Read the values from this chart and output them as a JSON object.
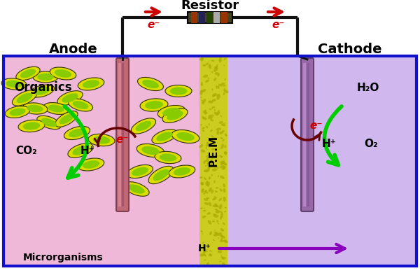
{
  "fig_width": 6.0,
  "fig_height": 3.9,
  "dpi": 100,
  "bg_color": "#ffffff",
  "outer_border_color": "#1111cc",
  "anode_bg": "#f0b8d8",
  "cathode_bg": "#d0b8ee",
  "membrane_base": "#cccc20",
  "membrane_dark": "#aaaa00",
  "anode_label": "Anode",
  "cathode_label": "Cathode",
  "resistor_label": "Resistor",
  "organics_label": "Organics",
  "co2_label": "CO₂",
  "hplus_label": "H⁺",
  "microrg_label": "Microrganisms",
  "h2o_label": "H₂O",
  "o2_label": "O₂",
  "pem_label": "P.E.M",
  "hplus_mem": "H⁺",
  "electron_label": "e⁻",
  "elec_anode_color": "#c06878",
  "elec_cathode_color": "#9868a8",
  "wire_color": "#111111",
  "arrow_red": "#cc0000",
  "arrow_green": "#00cc00",
  "arrow_purple": "#8800bb",
  "dark_red": "#660000",
  "bacteria_yellow": "#dddd00",
  "bacteria_green": "#88cc00",
  "resistor_colors": [
    "#993300",
    "#222255",
    "#224400",
    "#aaaaaa",
    "#993300"
  ]
}
